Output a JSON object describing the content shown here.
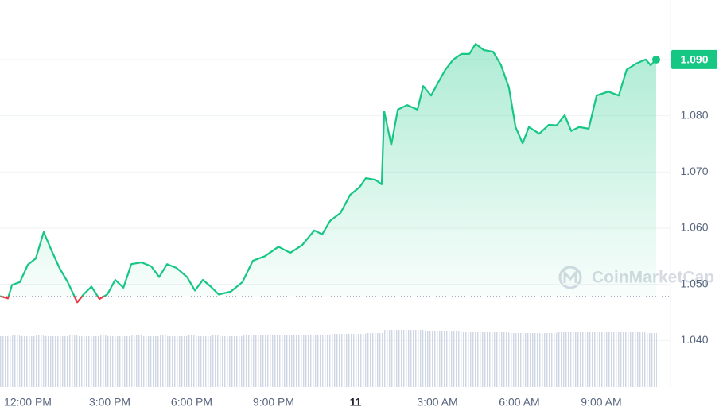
{
  "chart_data": {
    "type": "line",
    "x": [
      -1.02,
      -0.73,
      -0.58,
      -0.29,
      0,
      0.29,
      0.58,
      0.87,
      1.17,
      1.46,
      1.81,
      2.04,
      2.33,
      2.62,
      2.91,
      3.2,
      3.5,
      3.79,
      4.17,
      4.52,
      4.81,
      5.1,
      5.45,
      5.83,
      6.12,
      6.41,
      6.7,
      6.99,
      7.43,
      7.86,
      8.24,
      8.68,
      9.18,
      9.61,
      10.05,
      10.49,
      10.78,
      11.07,
      11.45,
      11.8,
      12.15,
      12.38,
      12.73,
      12.96,
      13.05,
      13.31,
      13.55,
      13.89,
      14.27,
      14.48,
      14.77,
      15.06,
      15.29,
      15.58,
      15.88,
      16.17,
      16.4,
      16.69,
      17.04,
      17.33,
      17.62,
      17.86,
      18.12,
      18.35,
      18.73,
      19.08,
      19.37,
      19.66,
      19.9,
      20.19,
      20.54,
      20.83,
      21.26,
      21.64,
      21.93,
      22.28,
      22.63,
      22.81,
      23.01
    ],
    "values": [
      1.0479,
      1.0475,
      1.0499,
      1.0504,
      1.0535,
      1.0546,
      1.0593,
      1.056,
      1.0528,
      1.0504,
      1.0468,
      1.0482,
      1.0496,
      1.0474,
      1.0482,
      1.0508,
      1.0494,
      1.0536,
      1.0539,
      1.0532,
      1.0513,
      1.0536,
      1.0529,
      1.0513,
      1.0489,
      1.0508,
      1.0496,
      1.0482,
      1.0487,
      1.0504,
      1.0542,
      1.055,
      1.0567,
      1.0556,
      1.057,
      1.0596,
      1.0589,
      1.0613,
      1.0627,
      1.0659,
      1.0673,
      1.0689,
      1.0686,
      1.0678,
      1.0808,
      1.0748,
      1.0811,
      1.0819,
      1.0811,
      1.0853,
      1.0836,
      1.0862,
      1.0882,
      1.09,
      1.091,
      1.091,
      1.0928,
      1.0917,
      1.0914,
      1.089,
      1.085,
      1.078,
      1.0751,
      1.078,
      1.0768,
      1.0784,
      1.0783,
      1.0801,
      1.0773,
      1.078,
      1.0777,
      1.0836,
      1.0843,
      1.0836,
      1.0882,
      1.0893,
      1.09,
      1.089,
      1.09
    ],
    "volume": [
      64,
      64,
      65,
      64,
      64,
      65,
      64,
      64,
      64,
      65,
      64,
      64,
      64,
      65,
      64,
      64,
      64,
      65,
      64,
      64,
      65,
      64,
      64,
      65,
      64,
      64,
      65,
      64,
      64,
      65,
      65,
      65,
      65,
      66,
      66,
      66,
      66,
      67,
      67,
      67,
      67,
      68,
      68,
      68,
      72,
      72,
      72,
      72,
      72,
      71,
      71,
      71,
      71,
      71,
      70,
      70,
      70,
      70,
      69,
      69,
      68,
      68,
      68,
      68,
      68,
      68,
      69,
      69,
      69,
      70,
      70,
      70,
      70,
      70,
      69,
      69,
      68,
      68,
      68
    ],
    "color": "#16c784",
    "down_color": "#ea3943",
    "open_price": 1.0479,
    "xlim": [
      -1.02,
      23.04
    ],
    "ylim": [
      1.0317,
      1.1006
    ],
    "xticks": [
      {
        "value": 0,
        "label": "12:00 PM"
      },
      {
        "value": 3,
        "label": "3:00 PM"
      },
      {
        "value": 6,
        "label": "6:00 PM"
      },
      {
        "value": 9,
        "label": "9:00 PM"
      },
      {
        "value": 12,
        "label": "11"
      },
      {
        "value": 15,
        "label": "3:00 AM"
      },
      {
        "value": 18,
        "label": "6:00 AM"
      },
      {
        "value": 21,
        "label": "9:00 AM"
      }
    ],
    "yticks": [
      {
        "value": 1.04,
        "label": "1.040"
      },
      {
        "value": 1.05,
        "label": "1.050"
      },
      {
        "value": 1.06,
        "label": "1.060"
      },
      {
        "value": 1.07,
        "label": "1.070"
      },
      {
        "value": 1.08,
        "label": "1.080"
      },
      {
        "value": 1.09,
        "label": "1.090"
      }
    ],
    "current_price_label": "1.090",
    "watermark": "CoinMarketCap",
    "grid": true
  }
}
